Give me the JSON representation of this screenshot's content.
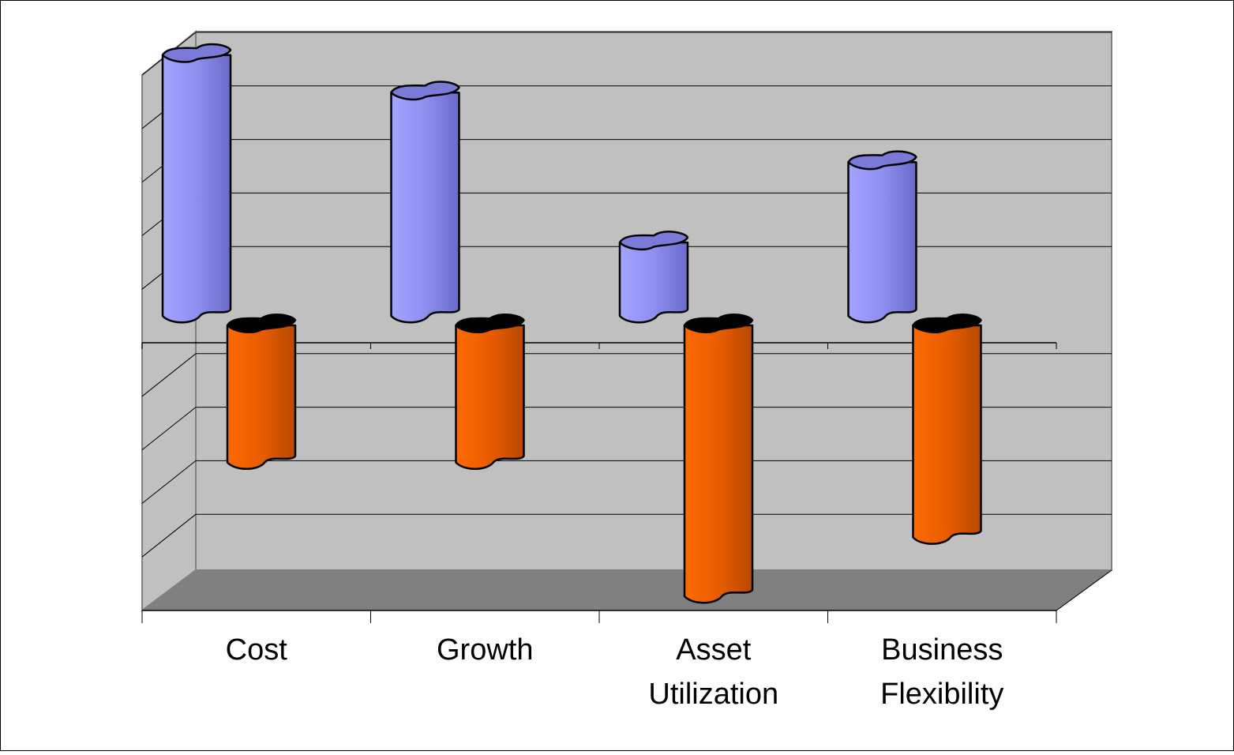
{
  "chart_data": {
    "type": "bar",
    "style": "3d-cylinder",
    "categories": [
      [
        "Cost"
      ],
      [
        "Growth"
      ],
      [
        "Asset",
        "Utilization"
      ],
      [
        "Business",
        "Flexibility"
      ]
    ],
    "series": [
      {
        "values": [
          4.9,
          4.2,
          1.4,
          2.9
        ],
        "color": "#9999FF"
      },
      {
        "values": [
          -2.5,
          -2.5,
          -5.0,
          -3.9
        ],
        "color": "#FF6600"
      }
    ],
    "ylim": [
      -5,
      5
    ],
    "ytick_step": 1,
    "grid": true,
    "legend": "none",
    "colors": {
      "back_wall": "#C0C0C0",
      "side_wall": "#C0C0C0",
      "floor": "#808080",
      "gridline": "#000000",
      "wall_edge": "#808080"
    }
  }
}
